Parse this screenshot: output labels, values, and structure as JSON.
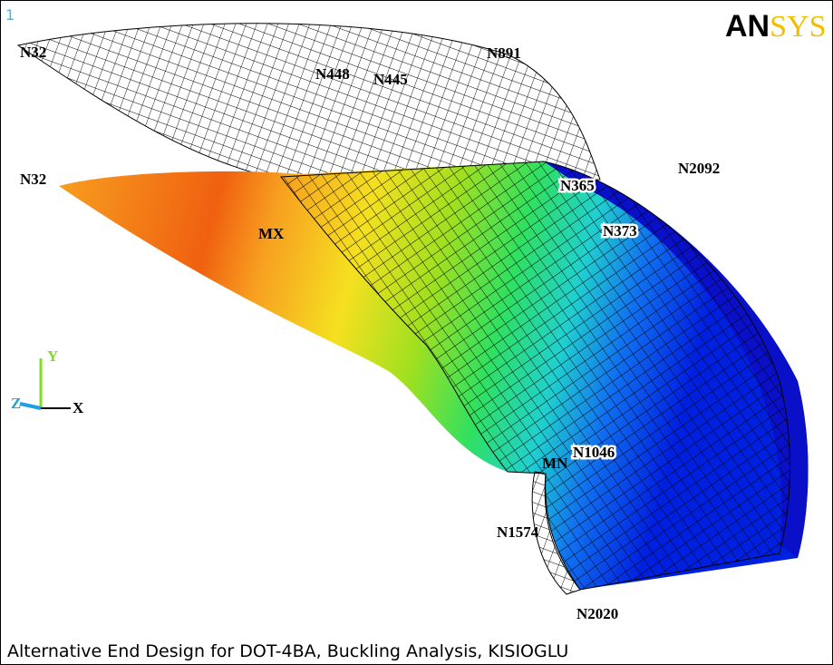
{
  "window_number": "1",
  "logo": {
    "part1": "AN",
    "part2": "SYS"
  },
  "node_labels": [
    "N32",
    "N448",
    "N445",
    "N891",
    "N32",
    "N2092",
    "N365",
    "N373",
    "MX",
    "N1046",
    "MN",
    "N1574",
    "N2020"
  ],
  "triad": {
    "y": "Y",
    "z": "Z",
    "x": "X"
  },
  "caption": "Alternative End Design for DOT-4BA, Buckling Analysis, KISIOGLU"
}
